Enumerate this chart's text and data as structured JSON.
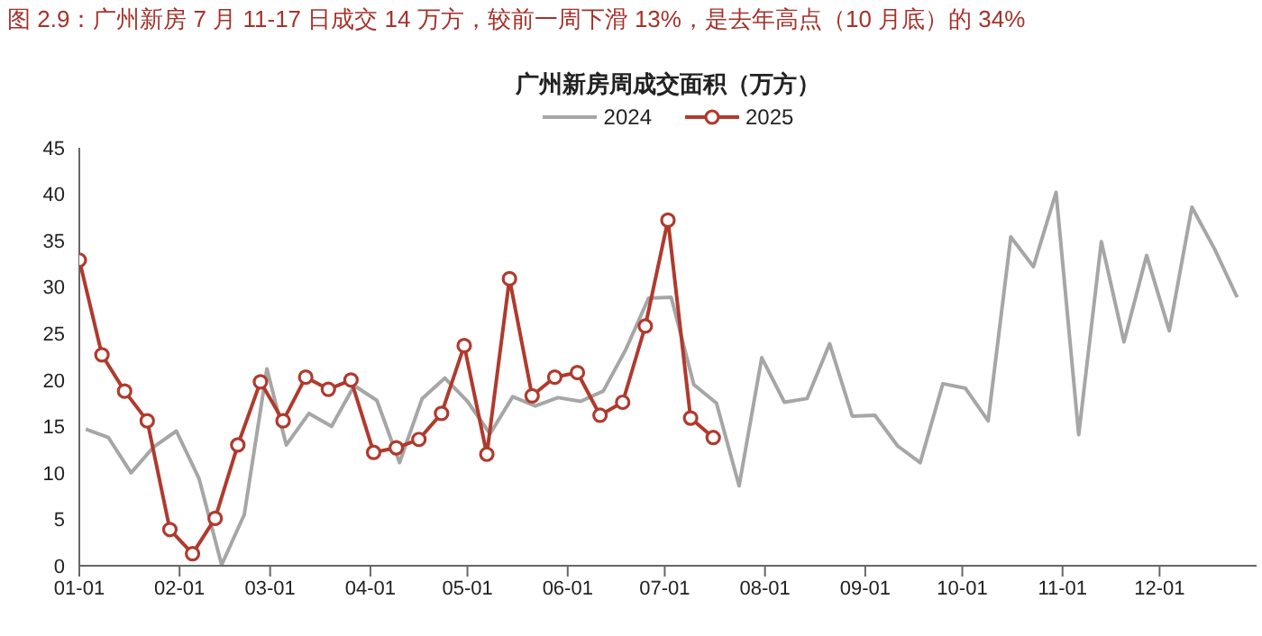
{
  "chart_data": {
    "type": "line",
    "title": "广州新房周成交面积（万方）",
    "annotations": [
      "图 2.9：广州新房 7 月 11-17 日成交 14 万方，较前一周下滑 13%，是去年高点（10 月底）的 34%"
    ],
    "series": [
      {
        "name": "2024",
        "color": "#a6a6a6",
        "marker": "none",
        "x": [
          "--01-03",
          "--01-10",
          "--01-17",
          "--01-24",
          "--01-31",
          "--02-07",
          "--02-14",
          "--02-21",
          "--02-28",
          "--03-06",
          "--03-13",
          "--03-20",
          "--03-27",
          "--04-03",
          "--04-10",
          "--04-17",
          "--04-24",
          "--05-01",
          "--05-08",
          "--05-15",
          "--05-22",
          "--05-29",
          "--06-05",
          "--06-12",
          "--06-19",
          "--06-26",
          "--07-03",
          "--07-10",
          "--07-17",
          "--07-24",
          "--07-31",
          "--08-07",
          "--08-14",
          "--08-21",
          "--08-28",
          "--09-04",
          "--09-11",
          "--09-18",
          "--09-25",
          "--10-02",
          "--10-09",
          "--10-16",
          "--10-23",
          "--10-30",
          "--11-06",
          "--11-13",
          "--11-20",
          "--11-27",
          "--12-04",
          "--12-11",
          "--12-18",
          "--12-25"
        ],
        "values": [
          14.7,
          13.8,
          10.0,
          12.8,
          14.5,
          9.4,
          0.1,
          5.5,
          21.2,
          13.0,
          16.4,
          15.0,
          19.4,
          17.8,
          11.1,
          18.0,
          20.2,
          17.7,
          14.2,
          18.2,
          17.2,
          18.1,
          17.7,
          18.8,
          23.3,
          28.8,
          28.9,
          19.5,
          17.5,
          8.6,
          22.4,
          17.6,
          18.0,
          23.9,
          16.1,
          16.2,
          12.9,
          11.1,
          19.6,
          19.1,
          15.6,
          35.4,
          32.2,
          40.2,
          14.1,
          34.9,
          24.1,
          33.4,
          25.3,
          38.6,
          34.1,
          28.9
        ]
      },
      {
        "name": "2025",
        "color": "#b03a2e",
        "marker": "circle",
        "x": [
          "--01-01",
          "--01-08",
          "--01-15",
          "--01-22",
          "--01-29",
          "--02-05",
          "--02-12",
          "--02-19",
          "--02-26",
          "--03-05",
          "--03-12",
          "--03-19",
          "--03-26",
          "--04-02",
          "--04-09",
          "--04-16",
          "--04-23",
          "--04-30",
          "--05-07",
          "--05-14",
          "--05-21",
          "--05-28",
          "--06-04",
          "--06-11",
          "--06-18",
          "--06-25",
          "--07-02",
          "--07-09",
          "--07-16"
        ],
        "values": [
          32.9,
          22.7,
          18.8,
          15.6,
          3.9,
          1.3,
          5.1,
          13.0,
          19.8,
          15.6,
          20.3,
          19.0,
          20.0,
          12.2,
          12.7,
          13.6,
          16.4,
          23.7,
          12.0,
          30.9,
          18.3,
          20.3,
          20.8,
          16.2,
          17.6,
          25.8,
          37.2,
          15.9,
          13.8
        ]
      }
    ],
    "xlim": [
      "--01-01",
      "--12-31"
    ],
    "xticks": [
      {
        "value": "--01-01",
        "label": "01-01"
      },
      {
        "value": "--02-01",
        "label": "02-01"
      },
      {
        "value": "--03-01",
        "label": "03-01"
      },
      {
        "value": "--04-01",
        "label": "04-01"
      },
      {
        "value": "--05-01",
        "label": "05-01"
      },
      {
        "value": "--06-01",
        "label": "06-01"
      },
      {
        "value": "--07-01",
        "label": "07-01"
      },
      {
        "value": "--08-01",
        "label": "08-01"
      },
      {
        "value": "--09-01",
        "label": "09-01"
      },
      {
        "value": "--10-01",
        "label": "10-01"
      },
      {
        "value": "--11-01",
        "label": "11-01"
      },
      {
        "value": "--12-01",
        "label": "12-01"
      }
    ],
    "ylim": [
      0,
      45
    ],
    "yticks": [
      0,
      5,
      10,
      15,
      20,
      25,
      30,
      35,
      40,
      45
    ],
    "grid": false,
    "legend": "top",
    "line_style": "solid"
  }
}
